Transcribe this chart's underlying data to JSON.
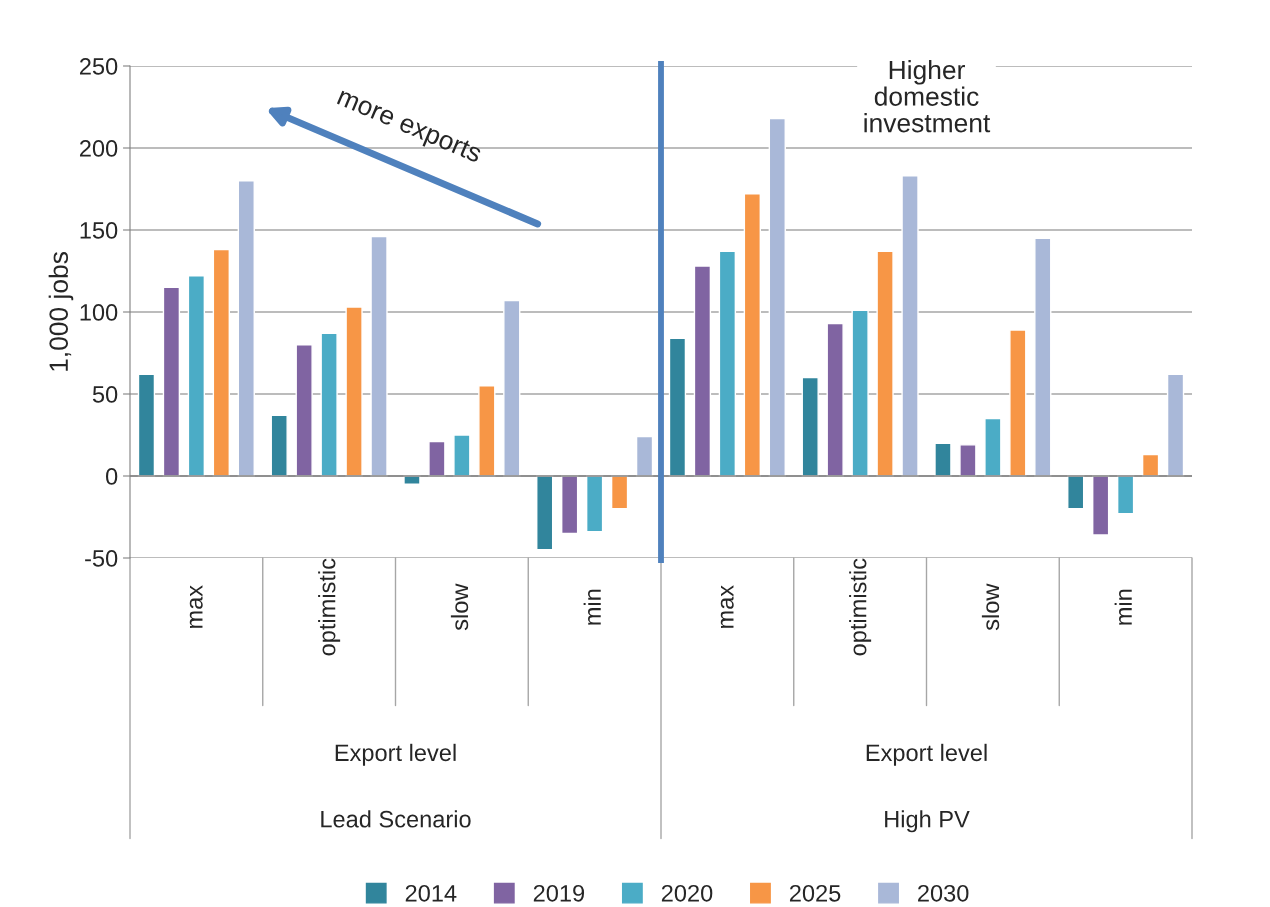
{
  "chart_data": {
    "type": "bar",
    "ylabel": "1,000 jobs",
    "categories": [
      "max",
      "optimistic",
      "slow",
      "min",
      "max",
      "optimistic",
      "slow",
      "min"
    ],
    "series": [
      {
        "name": "2014",
        "color": "#31859c",
        "values": [
          62,
          37,
          -5,
          -45,
          84,
          60,
          20,
          -20
        ]
      },
      {
        "name": "2019",
        "color": "#8064a2",
        "values": [
          115,
          80,
          21,
          -35,
          128,
          93,
          19,
          -36
        ]
      },
      {
        "name": "2020",
        "color": "#4bacc6",
        "values": [
          122,
          87,
          25,
          -34,
          137,
          101,
          35,
          -23
        ]
      },
      {
        "name": "2025",
        "color": "#f79646",
        "values": [
          138,
          103,
          55,
          -20,
          172,
          137,
          89,
          13
        ]
      },
      {
        "name": "2030",
        "color": "#a9b8d8",
        "values": [
          180,
          146,
          107,
          24,
          218,
          183,
          145,
          62
        ]
      }
    ],
    "ylim": [
      -50,
      250
    ],
    "yticks": [
      -50,
      0,
      50,
      100,
      150,
      200,
      250
    ],
    "grid": "y",
    "legend": "bottom",
    "annotations": [
      "more exports",
      "Higher\ndomestic\ninvestment",
      "Export level",
      "Export level",
      "Lead Scenario",
      "High PV"
    ]
  }
}
